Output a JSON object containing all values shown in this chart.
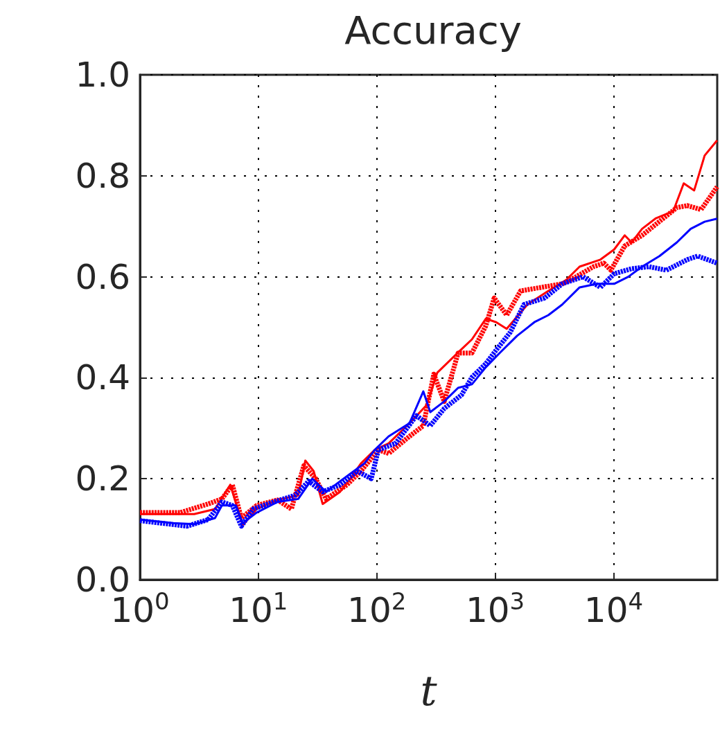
{
  "chart_data": {
    "type": "line",
    "title": "Accuracy",
    "xlabel": "t",
    "log": "x",
    "grid": true,
    "xlim": [
      1,
      75000
    ],
    "ylim": [
      0,
      1
    ],
    "xticks": [
      {
        "value": 1,
        "label": "10$^{0}$"
      },
      {
        "value": 10,
        "label": "10$^{1}$"
      },
      {
        "value": 100,
        "label": "10$^{2}$"
      },
      {
        "value": 1000,
        "label": "10$^{3}$"
      },
      {
        "value": 10000,
        "label": "10$^{4}$"
      }
    ],
    "yticks": [
      {
        "value": 0,
        "label": "0.0"
      },
      0.2,
      0.4,
      0.6,
      0.8,
      {
        "value": 1,
        "label": "1.0"
      }
    ],
    "series": [
      {
        "color": "#ff0000",
        "line_style": "solid",
        "x": [
          1,
          2.87,
          4.3,
          5.79,
          7.38,
          9.67,
          14.5,
          21.7,
          24.9,
          29.3,
          34.9,
          48.9,
          59.8,
          73.3,
          96,
          126,
          189,
          264,
          324,
          486,
          636,
          834,
          1020,
          1250,
          1870,
          2810,
          3940,
          5160,
          7740,
          10100,
          12400,
          14200,
          17400,
          22800,
          31900,
          39100,
          47900,
          58700,
          74800
        ],
        "values": [
          0.13,
          0.13,
          0.14,
          0.188,
          0.108,
          0.14,
          0.158,
          0.167,
          0.236,
          0.215,
          0.15,
          0.174,
          0.2,
          0.23,
          0.257,
          0.27,
          0.31,
          0.346,
          0.41,
          0.45,
          0.476,
          0.517,
          0.51,
          0.497,
          0.545,
          0.572,
          0.593,
          0.62,
          0.634,
          0.654,
          0.682,
          0.668,
          0.695,
          0.716,
          0.73,
          0.785,
          0.771,
          0.84,
          0.87
        ]
      },
      {
        "color": "#ff0000",
        "line_style": "dashed",
        "x": [
          1,
          2.19,
          3.76,
          4.92,
          6.03,
          7.18,
          9.67,
          14.5,
          19,
          24.2,
          30.5,
          37.3,
          56,
          73.3,
          103,
          126,
          189,
          247,
          303,
          371,
          486,
          636,
          834,
          980,
          1250,
          1640,
          2450,
          3680,
          4820,
          6760,
          8280,
          9480,
          12400,
          17400,
          34200,
          41900,
          54800,
          74800
        ],
        "values": [
          0.133,
          0.133,
          0.15,
          0.16,
          0.188,
          0.122,
          0.147,
          0.158,
          0.14,
          0.226,
          0.2,
          0.16,
          0.188,
          0.215,
          0.257,
          0.25,
          0.284,
          0.305,
          0.407,
          0.353,
          0.449,
          0.449,
          0.503,
          0.558,
          0.524,
          0.572,
          0.579,
          0.586,
          0.6,
          0.62,
          0.627,
          0.613,
          0.661,
          0.682,
          0.737,
          0.741,
          0.733,
          0.778
        ]
      },
      {
        "color": "#0000ff",
        "line_style": "solid",
        "x": [
          1,
          1.91,
          2.87,
          4.3,
          4.92,
          6.45,
          7.38,
          9.67,
          14.5,
          21.7,
          28.5,
          37.3,
          48.9,
          64,
          78.4,
          96,
          126,
          189,
          247,
          283,
          371,
          486,
          636,
          834,
          1090,
          1530,
          2140,
          2810,
          3680,
          5160,
          7230,
          10100,
          13300,
          17400,
          24400,
          34200,
          44800,
          58700,
          74800
        ],
        "values": [
          0.119,
          0.112,
          0.11,
          0.122,
          0.147,
          0.147,
          0.112,
          0.133,
          0.154,
          0.16,
          0.2,
          0.174,
          0.195,
          0.215,
          0.23,
          0.257,
          0.284,
          0.31,
          0.373,
          0.332,
          0.353,
          0.38,
          0.387,
          0.421,
          0.449,
          0.483,
          0.51,
          0.524,
          0.545,
          0.579,
          0.586,
          0.586,
          0.6,
          0.62,
          0.641,
          0.668,
          0.695,
          0.709,
          0.715
        ]
      },
      {
        "color": "#0000ff",
        "line_style": "dashed",
        "x": [
          1,
          2.5,
          3.76,
          4.92,
          6.03,
          7.18,
          9.04,
          13.5,
          20.3,
          26.6,
          34.9,
          48.9,
          68.5,
          89.8,
          103,
          144,
          216,
          283,
          371,
          520,
          636,
          834,
          1020,
          1340,
          1750,
          2620,
          3680,
          5520,
          7740,
          10100,
          14200,
          19900,
          27900,
          41900,
          51300,
          74800
        ],
        "values": [
          0.117,
          0.106,
          0.119,
          0.154,
          0.147,
          0.106,
          0.14,
          0.154,
          0.167,
          0.195,
          0.174,
          0.188,
          0.215,
          0.2,
          0.257,
          0.27,
          0.325,
          0.305,
          0.339,
          0.366,
          0.401,
          0.428,
          0.455,
          0.49,
          0.545,
          0.558,
          0.586,
          0.6,
          0.579,
          0.606,
          0.616,
          0.62,
          0.613,
          0.634,
          0.641,
          0.627
        ]
      }
    ]
  }
}
